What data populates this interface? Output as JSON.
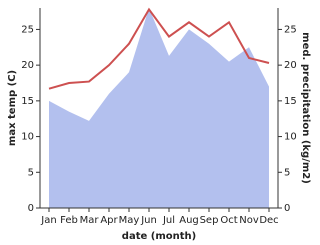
{
  "chart_data": {
    "type": "area-line",
    "xlabel": "date (month)",
    "ylabel": "max temp (C)",
    "y2label": "med. precipitation (kg/m2)",
    "categories": [
      "Jan",
      "Feb",
      "Mar",
      "Apr",
      "May",
      "Jun",
      "Jul",
      "Aug",
      "Sep",
      "Oct",
      "Nov",
      "Dec"
    ],
    "series": [
      {
        "name": "med. precipitation",
        "color": "#b3c0ee",
        "axis": "y2",
        "kind": "area",
        "values": [
          15,
          13.5,
          12.2,
          16,
          19,
          28,
          21.3,
          25,
          23,
          20.5,
          22.5,
          17
        ]
      },
      {
        "name": "max temp",
        "color": "#cd5050",
        "axis": "y",
        "kind": "line",
        "values": [
          16.7,
          17.5,
          17.7,
          20,
          23,
          27.8,
          24,
          26,
          24,
          26,
          21,
          20.3
        ]
      }
    ],
    "ylim": [
      0,
      28
    ],
    "yticks": [
      0,
      5,
      10,
      15,
      20,
      25
    ],
    "y2lim": [
      0,
      28
    ],
    "y2ticks": [
      0,
      5,
      10,
      15,
      20,
      25
    ]
  }
}
